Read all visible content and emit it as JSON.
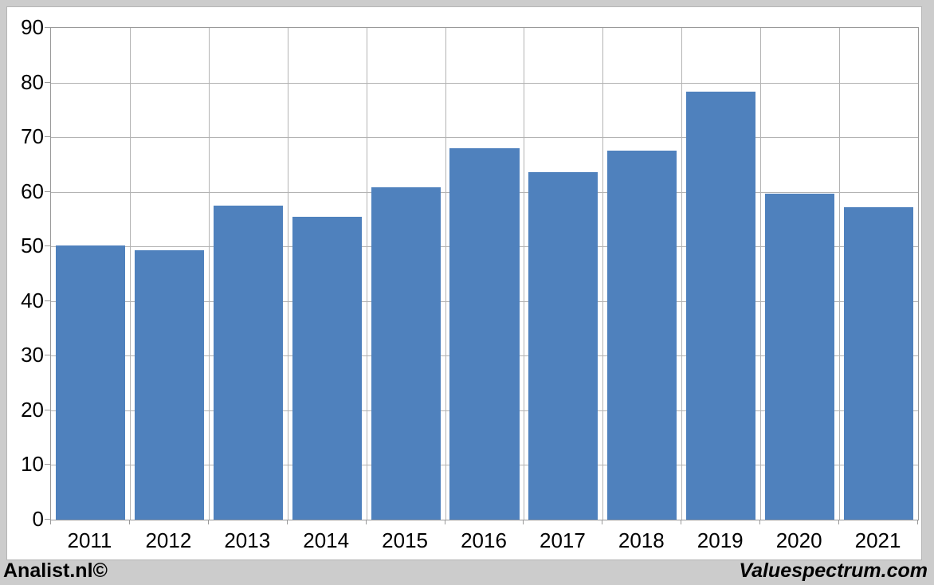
{
  "footer": {
    "left_brand": "Analist.nl©",
    "right_brand": "Valuespectrum.com"
  },
  "colors": {
    "bar": "#4f81bd",
    "gridline": "#b3b3b3",
    "axis": "#999999",
    "frame_background": "#cccccc",
    "canvas_background": "#ffffff",
    "label_text": "#000000"
  },
  "chart_data": {
    "type": "bar",
    "categories": [
      "2011",
      "2012",
      "2013",
      "2014",
      "2015",
      "2016",
      "2017",
      "2018",
      "2019",
      "2020",
      "2021"
    ],
    "values": [
      50.2,
      49.3,
      57.5,
      55.4,
      60.8,
      68.0,
      63.6,
      67.5,
      78.4,
      59.7,
      57.2
    ],
    "title": "",
    "xlabel": "",
    "ylabel": "",
    "ylim": [
      0,
      90
    ],
    "ytick_interval": 10,
    "yticks": [
      0,
      10,
      20,
      30,
      40,
      50,
      60,
      70,
      80,
      90
    ],
    "grid": "horizontal lines every 10 units and vertical lines at category boundaries",
    "legend": "none",
    "bar_gap_fraction": 0.06
  }
}
